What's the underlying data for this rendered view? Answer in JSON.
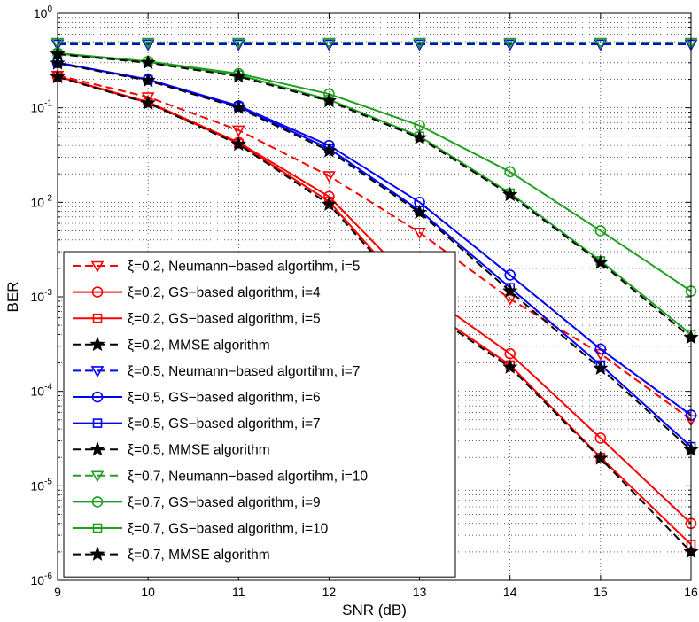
{
  "chart_data": {
    "type": "line",
    "xlabel": "SNR (dB)",
    "ylabel": "BER",
    "x": [
      9,
      10,
      11,
      12,
      13,
      14,
      15,
      16
    ],
    "xlim": [
      9,
      16
    ],
    "ylim": [
      1e-06,
      1
    ],
    "yscale": "log",
    "grid": true,
    "legend_position": "bottom-left",
    "x_tick_labels": [
      "9",
      "10",
      "11",
      "12",
      "13",
      "14",
      "15",
      "16"
    ],
    "y_tick_labels": [
      {
        "base": "10",
        "exp": "0"
      },
      {
        "base": "10",
        "exp": "-1"
      },
      {
        "base": "10",
        "exp": "-2"
      },
      {
        "base": "10",
        "exp": "-3"
      },
      {
        "base": "10",
        "exp": "-4"
      },
      {
        "base": "10",
        "exp": "-5"
      },
      {
        "base": "10",
        "exp": "-6"
      }
    ],
    "series": [
      {
        "name": "ξ=0.2, Neumann−based algortihm, i=5",
        "color": "#ff0000",
        "dash": "dashed",
        "marker": "triangle-down",
        "values": [
          0.22,
          0.13,
          0.058,
          0.019,
          0.0048,
          0.00095,
          0.00025,
          5e-05
        ]
      },
      {
        "name": "ξ=0.2, GS−based algorithm, i=4",
        "color": "#ff0000",
        "dash": "solid",
        "marker": "circle",
        "values": [
          0.215,
          0.115,
          0.043,
          0.0115,
          0.0012,
          0.00025,
          3.2e-05,
          4e-06
        ]
      },
      {
        "name": "ξ=0.2, GS−based algorithm, i=5",
        "color": "#ff0000",
        "dash": "solid",
        "marker": "square",
        "values": [
          0.215,
          0.113,
          0.042,
          0.0102,
          0.00085,
          0.00019,
          2e-05,
          2.4e-06
        ]
      },
      {
        "name": "ξ=0.2, MMSE algorithm",
        "color": "#000000",
        "dash": "dashed",
        "marker": "star",
        "values": [
          0.212,
          0.112,
          0.041,
          0.0095,
          0.0008,
          0.00018,
          1.95e-05,
          2e-06
        ]
      },
      {
        "name": "ξ=0.5, Neumann−based algortihm, i=7",
        "color": "#0000ff",
        "dash": "dashed",
        "marker": "triangle-down",
        "values": [
          0.47,
          0.47,
          0.47,
          0.47,
          0.47,
          0.47,
          0.47,
          0.47
        ]
      },
      {
        "name": "ξ=0.5, GS−based algorithm, i=6",
        "color": "#0000ff",
        "dash": "solid",
        "marker": "circle",
        "values": [
          0.3,
          0.2,
          0.105,
          0.04,
          0.01,
          0.0017,
          0.00028,
          5.6e-05
        ]
      },
      {
        "name": "ξ=0.5, GS−based algorithm, i=7",
        "color": "#0000ff",
        "dash": "solid",
        "marker": "square",
        "values": [
          0.3,
          0.198,
          0.103,
          0.037,
          0.0082,
          0.00125,
          0.00019,
          2.6e-05
        ]
      },
      {
        "name": "ξ=0.5, MMSE algorithm",
        "color": "#000000",
        "dash": "dashed",
        "marker": "star",
        "values": [
          0.296,
          0.194,
          0.1,
          0.035,
          0.0078,
          0.00115,
          0.000175,
          2.4e-05
        ]
      },
      {
        "name": "ξ=0.7, Neumann−based algortihm, i=10",
        "color": "#1f9f1f",
        "dash": "dashed",
        "marker": "triangle-down",
        "values": [
          0.49,
          0.49,
          0.49,
          0.49,
          0.49,
          0.49,
          0.49,
          0.49
        ]
      },
      {
        "name": "ξ=0.7, GS−based algorithm, i=9",
        "color": "#1f9f1f",
        "dash": "solid",
        "marker": "circle",
        "values": [
          0.38,
          0.31,
          0.23,
          0.14,
          0.065,
          0.021,
          0.005,
          0.00115
        ]
      },
      {
        "name": "ξ=0.7, GS−based algorithm, i=10",
        "color": "#1f9f1f",
        "dash": "solid",
        "marker": "square",
        "values": [
          0.375,
          0.305,
          0.222,
          0.122,
          0.05,
          0.0125,
          0.0024,
          0.0004
        ]
      },
      {
        "name": "ξ=0.7, MMSE algorithm",
        "color": "#000000",
        "dash": "dashed",
        "marker": "star",
        "values": [
          0.37,
          0.3,
          0.215,
          0.118,
          0.048,
          0.012,
          0.0023,
          0.00037
        ]
      }
    ]
  }
}
